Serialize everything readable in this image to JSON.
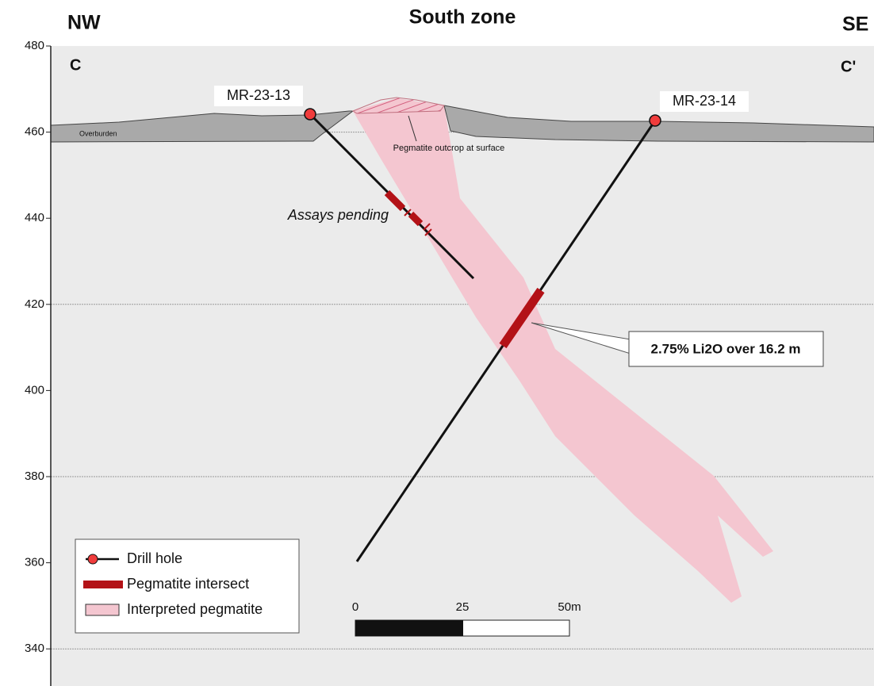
{
  "header": {
    "left": "NW",
    "title": "South zone",
    "right": "SE"
  },
  "section": {
    "start": "C",
    "end": "C'"
  },
  "elevation_ticks": [
    480,
    460,
    440,
    420,
    400,
    380,
    360,
    340
  ],
  "drill_holes": [
    {
      "label": "MR-23-13",
      "note": "Assays pending"
    },
    {
      "label": "MR-23-14",
      "note": "2.75% Li2O over 16.2 m"
    }
  ],
  "annotations": {
    "overburden": "Overburden",
    "outcrop": "Pegmatite outcrop at surface"
  },
  "legend": [
    "Drill hole",
    "Pegmatite intersect",
    "Interpreted pegmatite"
  ],
  "scale_bar": [
    0,
    25,
    {
      "value": 50,
      "label": "50m"
    }
  ]
}
